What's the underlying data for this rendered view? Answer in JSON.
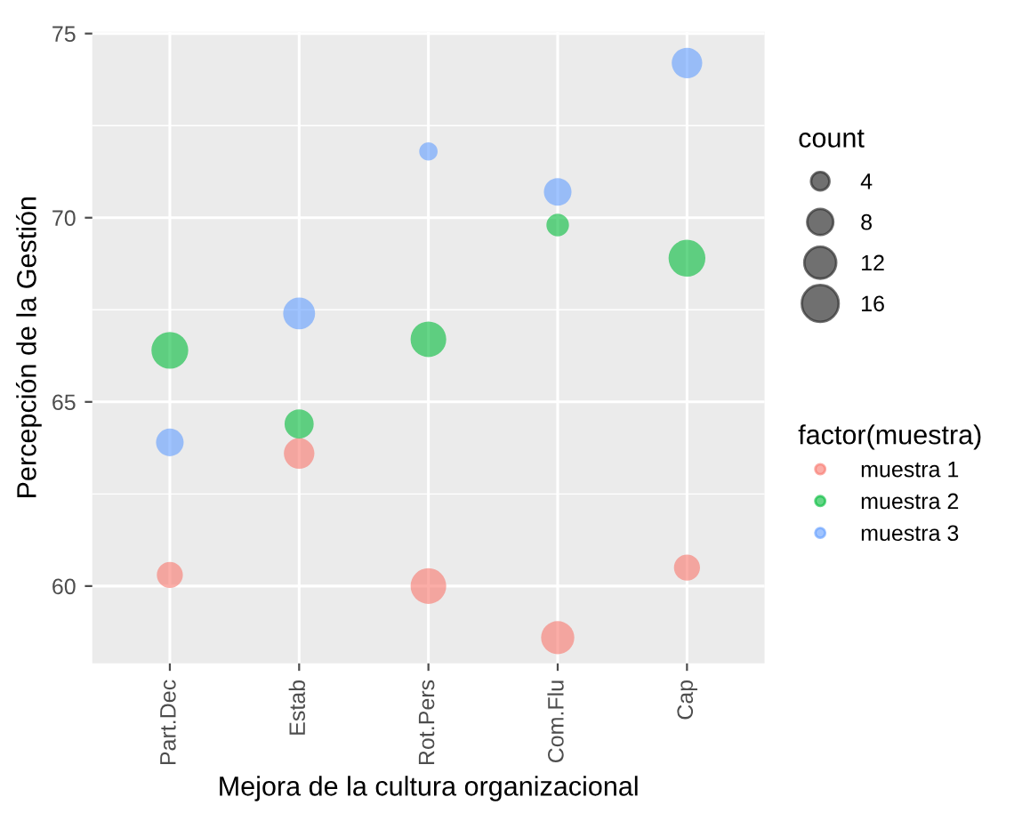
{
  "chart_data": {
    "type": "bubble",
    "xlabel": "Mejora de la cultura organizacional",
    "ylabel": "Percepción de la Gestión",
    "legend_title": "factor(muestra)",
    "annotations": [
      "count"
    ],
    "categories": [
      "Part.Dec",
      "Estab",
      "Rot.Pers",
      "Com.Flu",
      "Cap"
    ],
    "series": [
      {
        "name": "muestra 1",
        "color": "#f8766d",
        "values": [
          60.3,
          63.6,
          60.0,
          58.6,
          60.5
        ],
        "sizes": [
          8,
          11,
          15,
          13,
          8
        ]
      },
      {
        "name": "muestra 2",
        "color": "#00ba38",
        "values": [
          66.4,
          64.4,
          66.7,
          69.8,
          68.9
        ],
        "sizes": [
          16,
          10,
          15,
          6,
          16
        ]
      },
      {
        "name": "muestra 3",
        "color": "#619cff",
        "values": [
          63.9,
          67.4,
          71.8,
          70.7,
          74.2
        ],
        "sizes": [
          9,
          12,
          4,
          9,
          11
        ]
      }
    ],
    "size_legend": [
      4,
      8,
      12,
      16
    ],
    "ylim": [
      57.9,
      75.05
    ],
    "yticks": [
      60,
      65,
      70,
      75
    ],
    "grid": true,
    "legend": "right"
  }
}
